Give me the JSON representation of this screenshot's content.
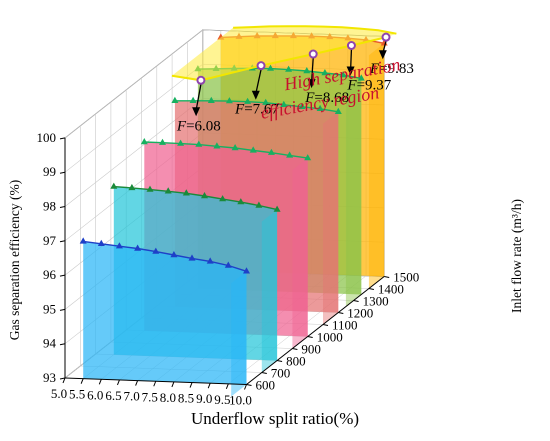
{
  "chart_data": {
    "type": "3d-ribbon",
    "title": "",
    "xlabel": "Underflow split ratio(%)",
    "ylabel": "Gas separation efficiency (%)",
    "zlabel": "Inlet flow rate (m³/h)",
    "x_ticks": [
      "5.0",
      "5.5",
      "6.0",
      "6.5",
      "7.0",
      "7.5",
      "8.0",
      "8.5",
      "9.0",
      "9.5",
      "10.0"
    ],
    "y_ticks": [
      "93",
      "94",
      "95",
      "96",
      "97",
      "98",
      "99",
      "100"
    ],
    "z_ticks": [
      "600",
      "700",
      "800",
      "900",
      "1000",
      "1100",
      "1200",
      "1300",
      "1400",
      "1500"
    ],
    "xlim": [
      5.0,
      10.0
    ],
    "ylim": [
      93,
      100
    ],
    "zlim": [
      600,
      1500
    ],
    "x": [
      5.5,
      6.0,
      6.5,
      7.0,
      7.5,
      8.0,
      8.5,
      9.0,
      9.5,
      10.0
    ],
    "series": [
      {
        "z": 600,
        "color": "#29b6f6",
        "line": "#1e40c8",
        "values": [
          97.0,
          96.95,
          96.9,
          96.85,
          96.78,
          96.7,
          96.62,
          96.55,
          96.45,
          96.3
        ]
      },
      {
        "z": 800,
        "color": "#26c6da",
        "line": "#1a8a3a",
        "values": [
          97.9,
          97.88,
          97.85,
          97.82,
          97.78,
          97.72,
          97.65,
          97.58,
          97.5,
          97.4
        ]
      },
      {
        "z": 1000,
        "color": "#f06292",
        "line": "#17b060",
        "values": [
          98.5,
          98.5,
          98.49,
          98.48,
          98.45,
          98.42,
          98.37,
          98.32,
          98.26,
          98.2
        ]
      },
      {
        "z": 1200,
        "color": "#e57373",
        "line": "#17b060",
        "values": [
          99.0,
          99.02,
          99.04,
          99.05,
          99.05,
          99.04,
          99.0,
          98.96,
          98.92,
          98.85
        ]
      },
      {
        "z": 1350,
        "color": "#8bc34a",
        "line": "#17b060",
        "values": [
          99.4,
          99.43,
          99.46,
          99.48,
          99.49,
          99.48,
          99.46,
          99.42,
          99.38,
          99.3
        ]
      },
      {
        "z": 1500,
        "color": "#ffb300",
        "line": "#e85a2a",
        "values": [
          99.8,
          99.84,
          99.88,
          99.9,
          99.92,
          99.93,
          99.93,
          99.91,
          99.88,
          99.8
        ]
      }
    ],
    "region_label": [
      "High separation",
      "efficiency region"
    ],
    "annotations": [
      {
        "prefix": "F",
        "value": "=6.08"
      },
      {
        "prefix": "F",
        "value": "=7.67"
      },
      {
        "prefix": "F",
        "value": "=8.68"
      },
      {
        "prefix": "F",
        "value": "=9.37"
      },
      {
        "prefix": "F",
        "value": "=9.83"
      }
    ]
  },
  "colors": {
    "grid": "#c9c9c9",
    "boundary": "#f2e600",
    "marker": "#8e44ad"
  }
}
